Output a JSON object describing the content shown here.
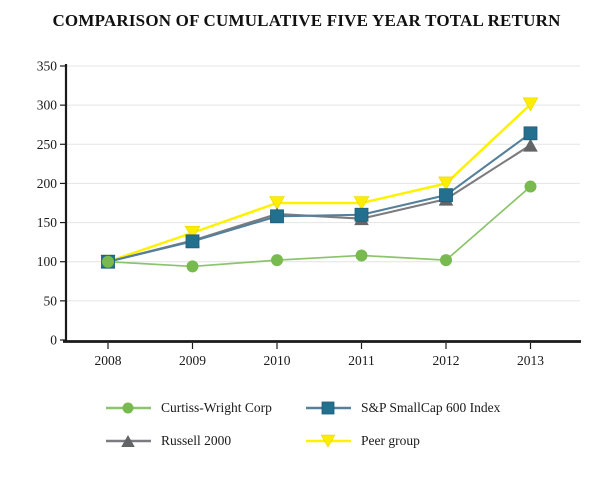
{
  "title": "COMPARISON OF CUMULATIVE FIVE YEAR TOTAL RETURN",
  "chart_data": {
    "type": "line",
    "x_labels": [
      "2008",
      "2009",
      "2010",
      "2011",
      "2012",
      "2013"
    ],
    "yticks": [
      0,
      50,
      100,
      150,
      200,
      250,
      300,
      350
    ],
    "ylim": [
      0,
      350
    ],
    "grid": true,
    "legend_position": "bottom",
    "series": [
      {
        "name": "Curtiss-Wright Corp",
        "marker": "circle",
        "marker_color": "#79BA50",
        "line_color": "#8CC46D",
        "values": [
          100,
          94,
          102,
          108,
          102,
          196
        ]
      },
      {
        "name": "S&P SmallCap 600 Index",
        "marker": "square",
        "marker_color": "#23708E",
        "line_color": "#54809C",
        "values": [
          100,
          126,
          158,
          160,
          185,
          264
        ]
      },
      {
        "name": "Russell 2000",
        "marker": "triangle-up",
        "marker_color": "#636466",
        "line_color": "#7B7C7F",
        "values": [
          100,
          127,
          161,
          155,
          180,
          249
        ]
      },
      {
        "name": "Peer group",
        "marker": "triangle-down",
        "marker_color": "#FFED00",
        "line_color": "#FFF200",
        "values": [
          100,
          137,
          175,
          175,
          200,
          301
        ]
      }
    ]
  },
  "style_colors": {
    "axis": "#1a1a1a",
    "gridline": "#e4e4e4",
    "background": "#ffffff"
  }
}
